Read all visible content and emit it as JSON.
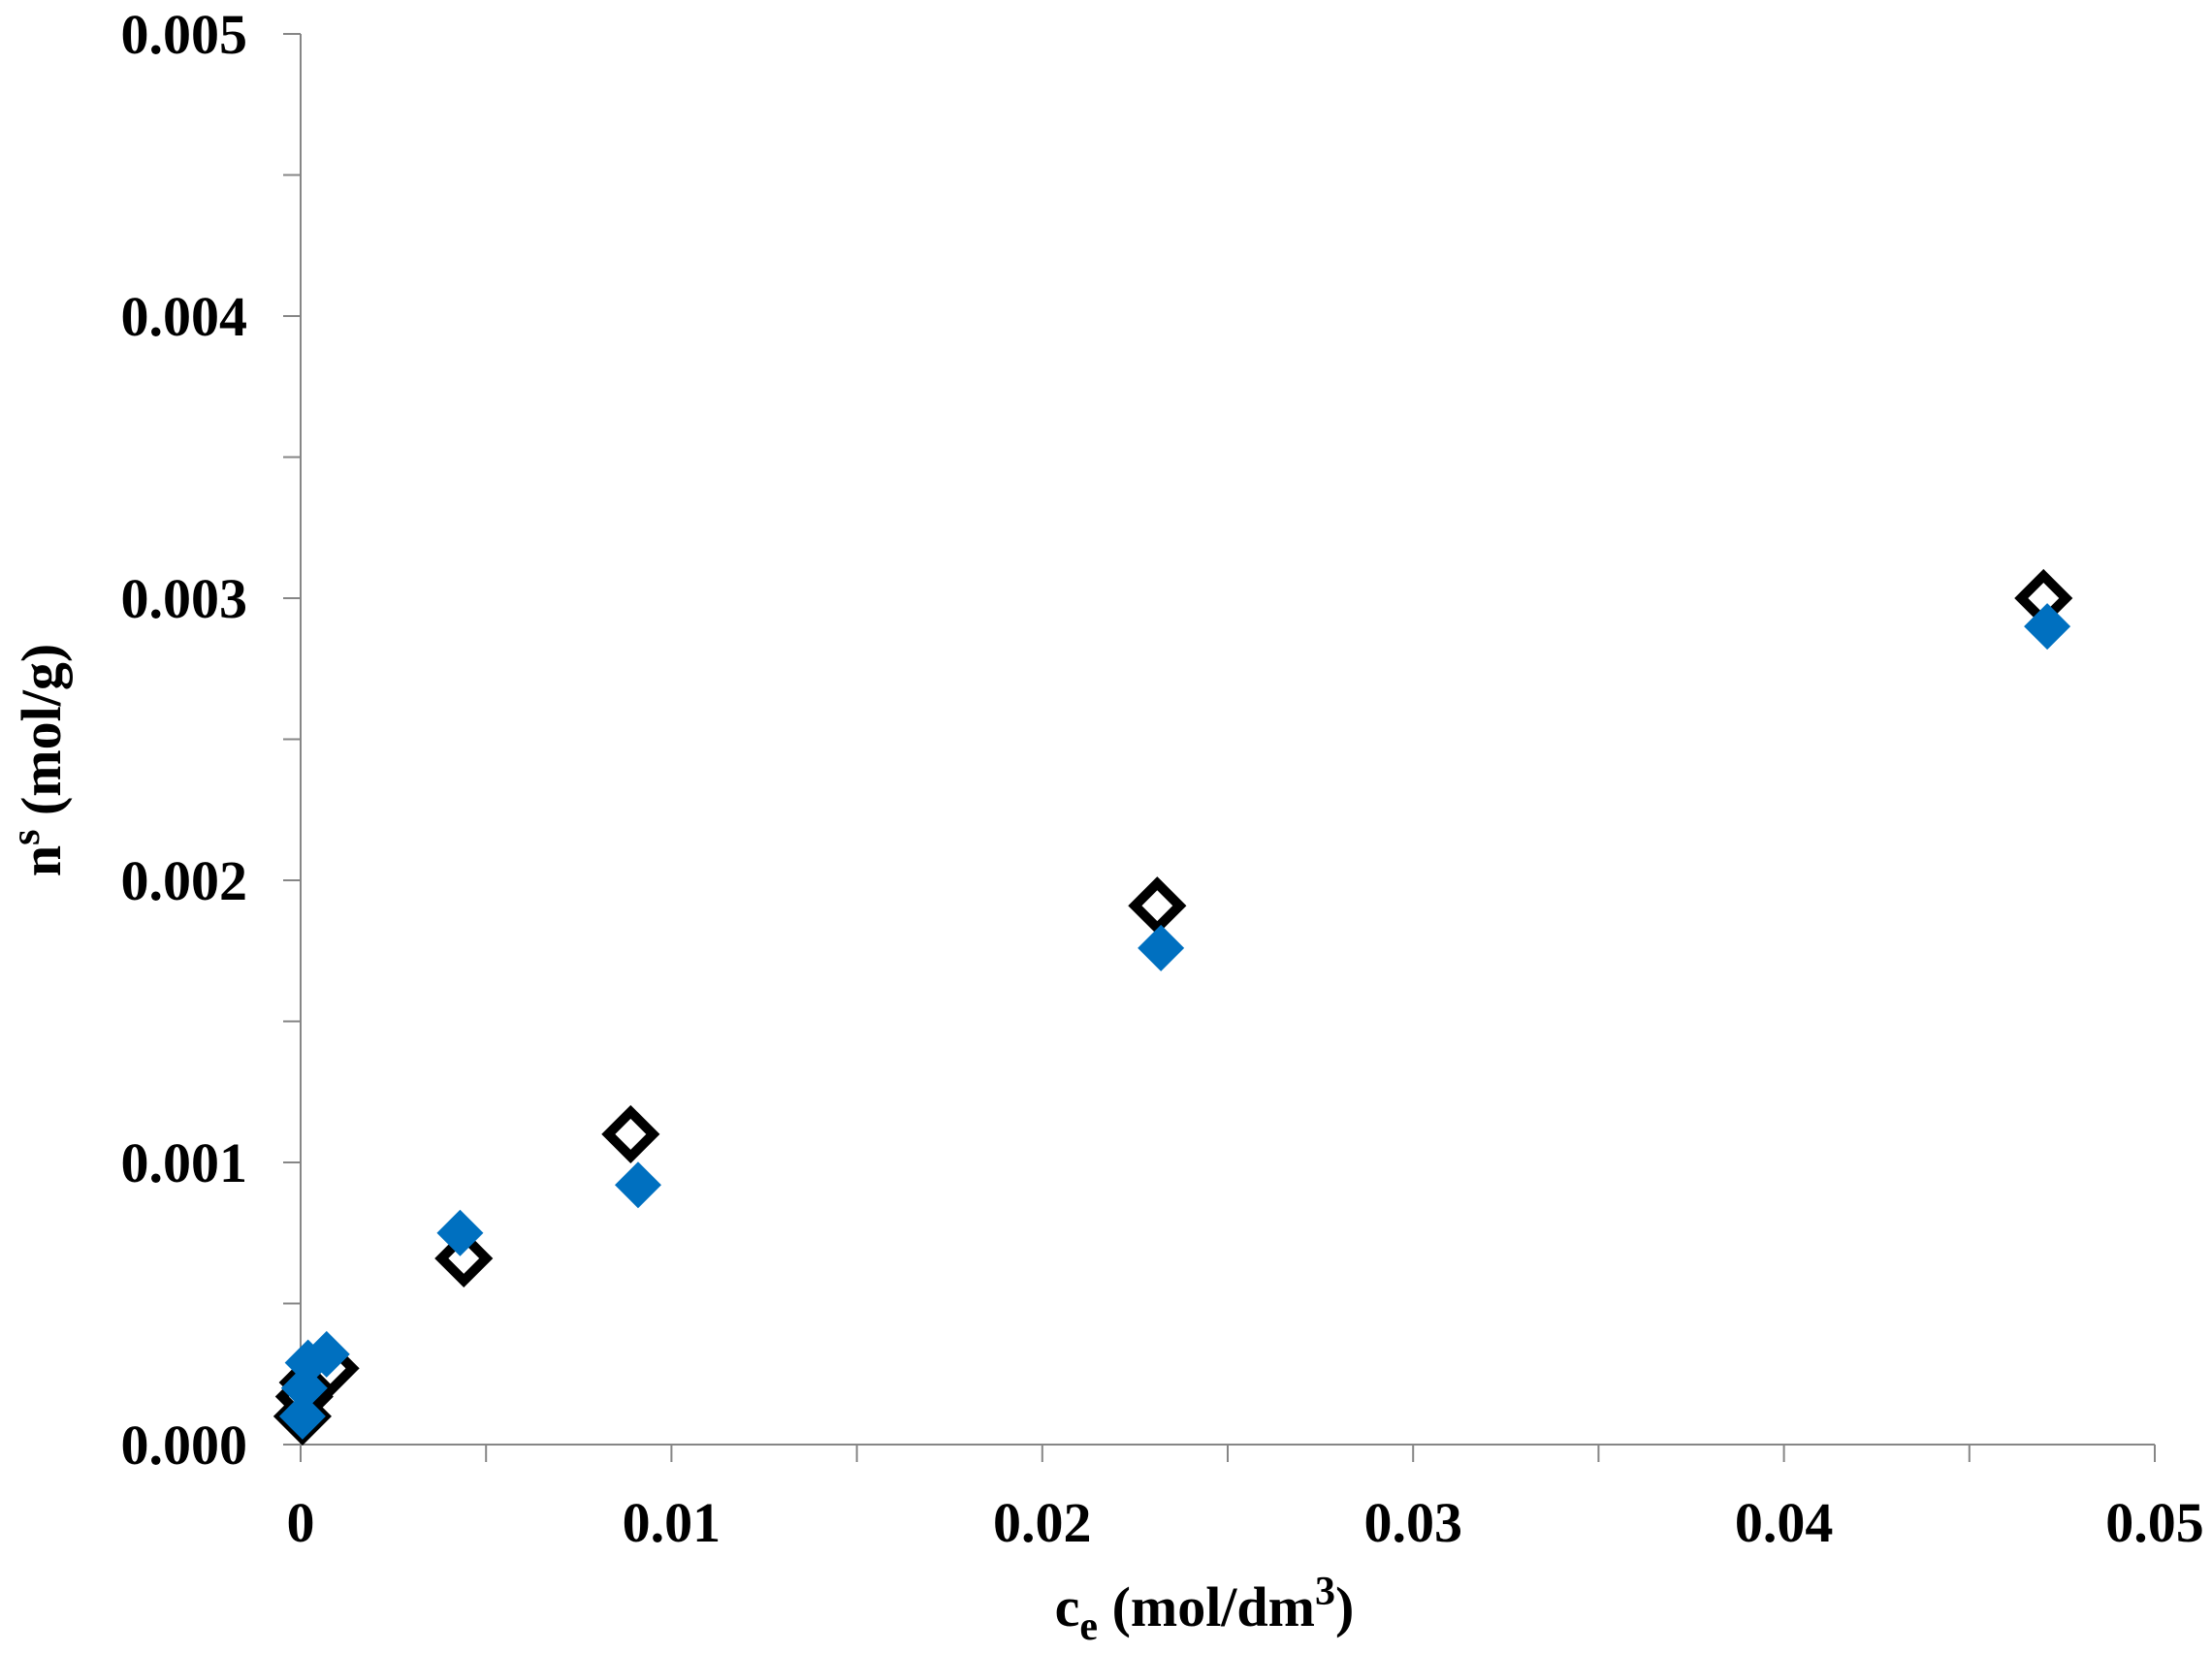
{
  "chart_data": {
    "type": "scatter",
    "title": "",
    "xlabel": {
      "base": "c",
      "sub": "e",
      "text": " (mol/dm",
      "sup": "3",
      "close": ")"
    },
    "ylabel": {
      "base": "n",
      "sup": "s",
      "text": " (mol/g)"
    },
    "xlim": [
      0,
      0.05
    ],
    "ylim": [
      0,
      0.005
    ],
    "x_ticks": [
      "0",
      "0.01",
      "0.02",
      "0.03",
      "0.04",
      "0.05"
    ],
    "y_ticks": [
      "0.000",
      "0.001",
      "0.002",
      "0.003",
      "0.004",
      "0.005"
    ],
    "legend": "none",
    "grid": false,
    "series": [
      {
        "marker": "open-diamond",
        "color": "#000000",
        "points": [
          [
            5e-05,
            0.0001
          ],
          [
            0.0001,
            0.00017
          ],
          [
            0.0002,
            0.00022
          ],
          [
            0.0005,
            0.00025
          ],
          [
            0.0008,
            0.00027
          ],
          [
            0.0044,
            0.00066
          ],
          [
            0.0089,
            0.0011
          ],
          [
            0.0231,
            0.00191
          ],
          [
            0.047,
            0.003
          ]
        ]
      },
      {
        "marker": "filled-diamond",
        "color": "#0070C0",
        "points": [
          [
            5e-05,
            0.0001
          ],
          [
            0.0001,
            0.0002
          ],
          [
            0.0002,
            0.00029
          ],
          [
            0.0007,
            0.00032
          ],
          [
            0.0043,
            0.00075
          ],
          [
            0.0091,
            0.00092
          ],
          [
            0.0232,
            0.00176
          ],
          [
            0.0471,
            0.0029
          ]
        ]
      }
    ]
  }
}
